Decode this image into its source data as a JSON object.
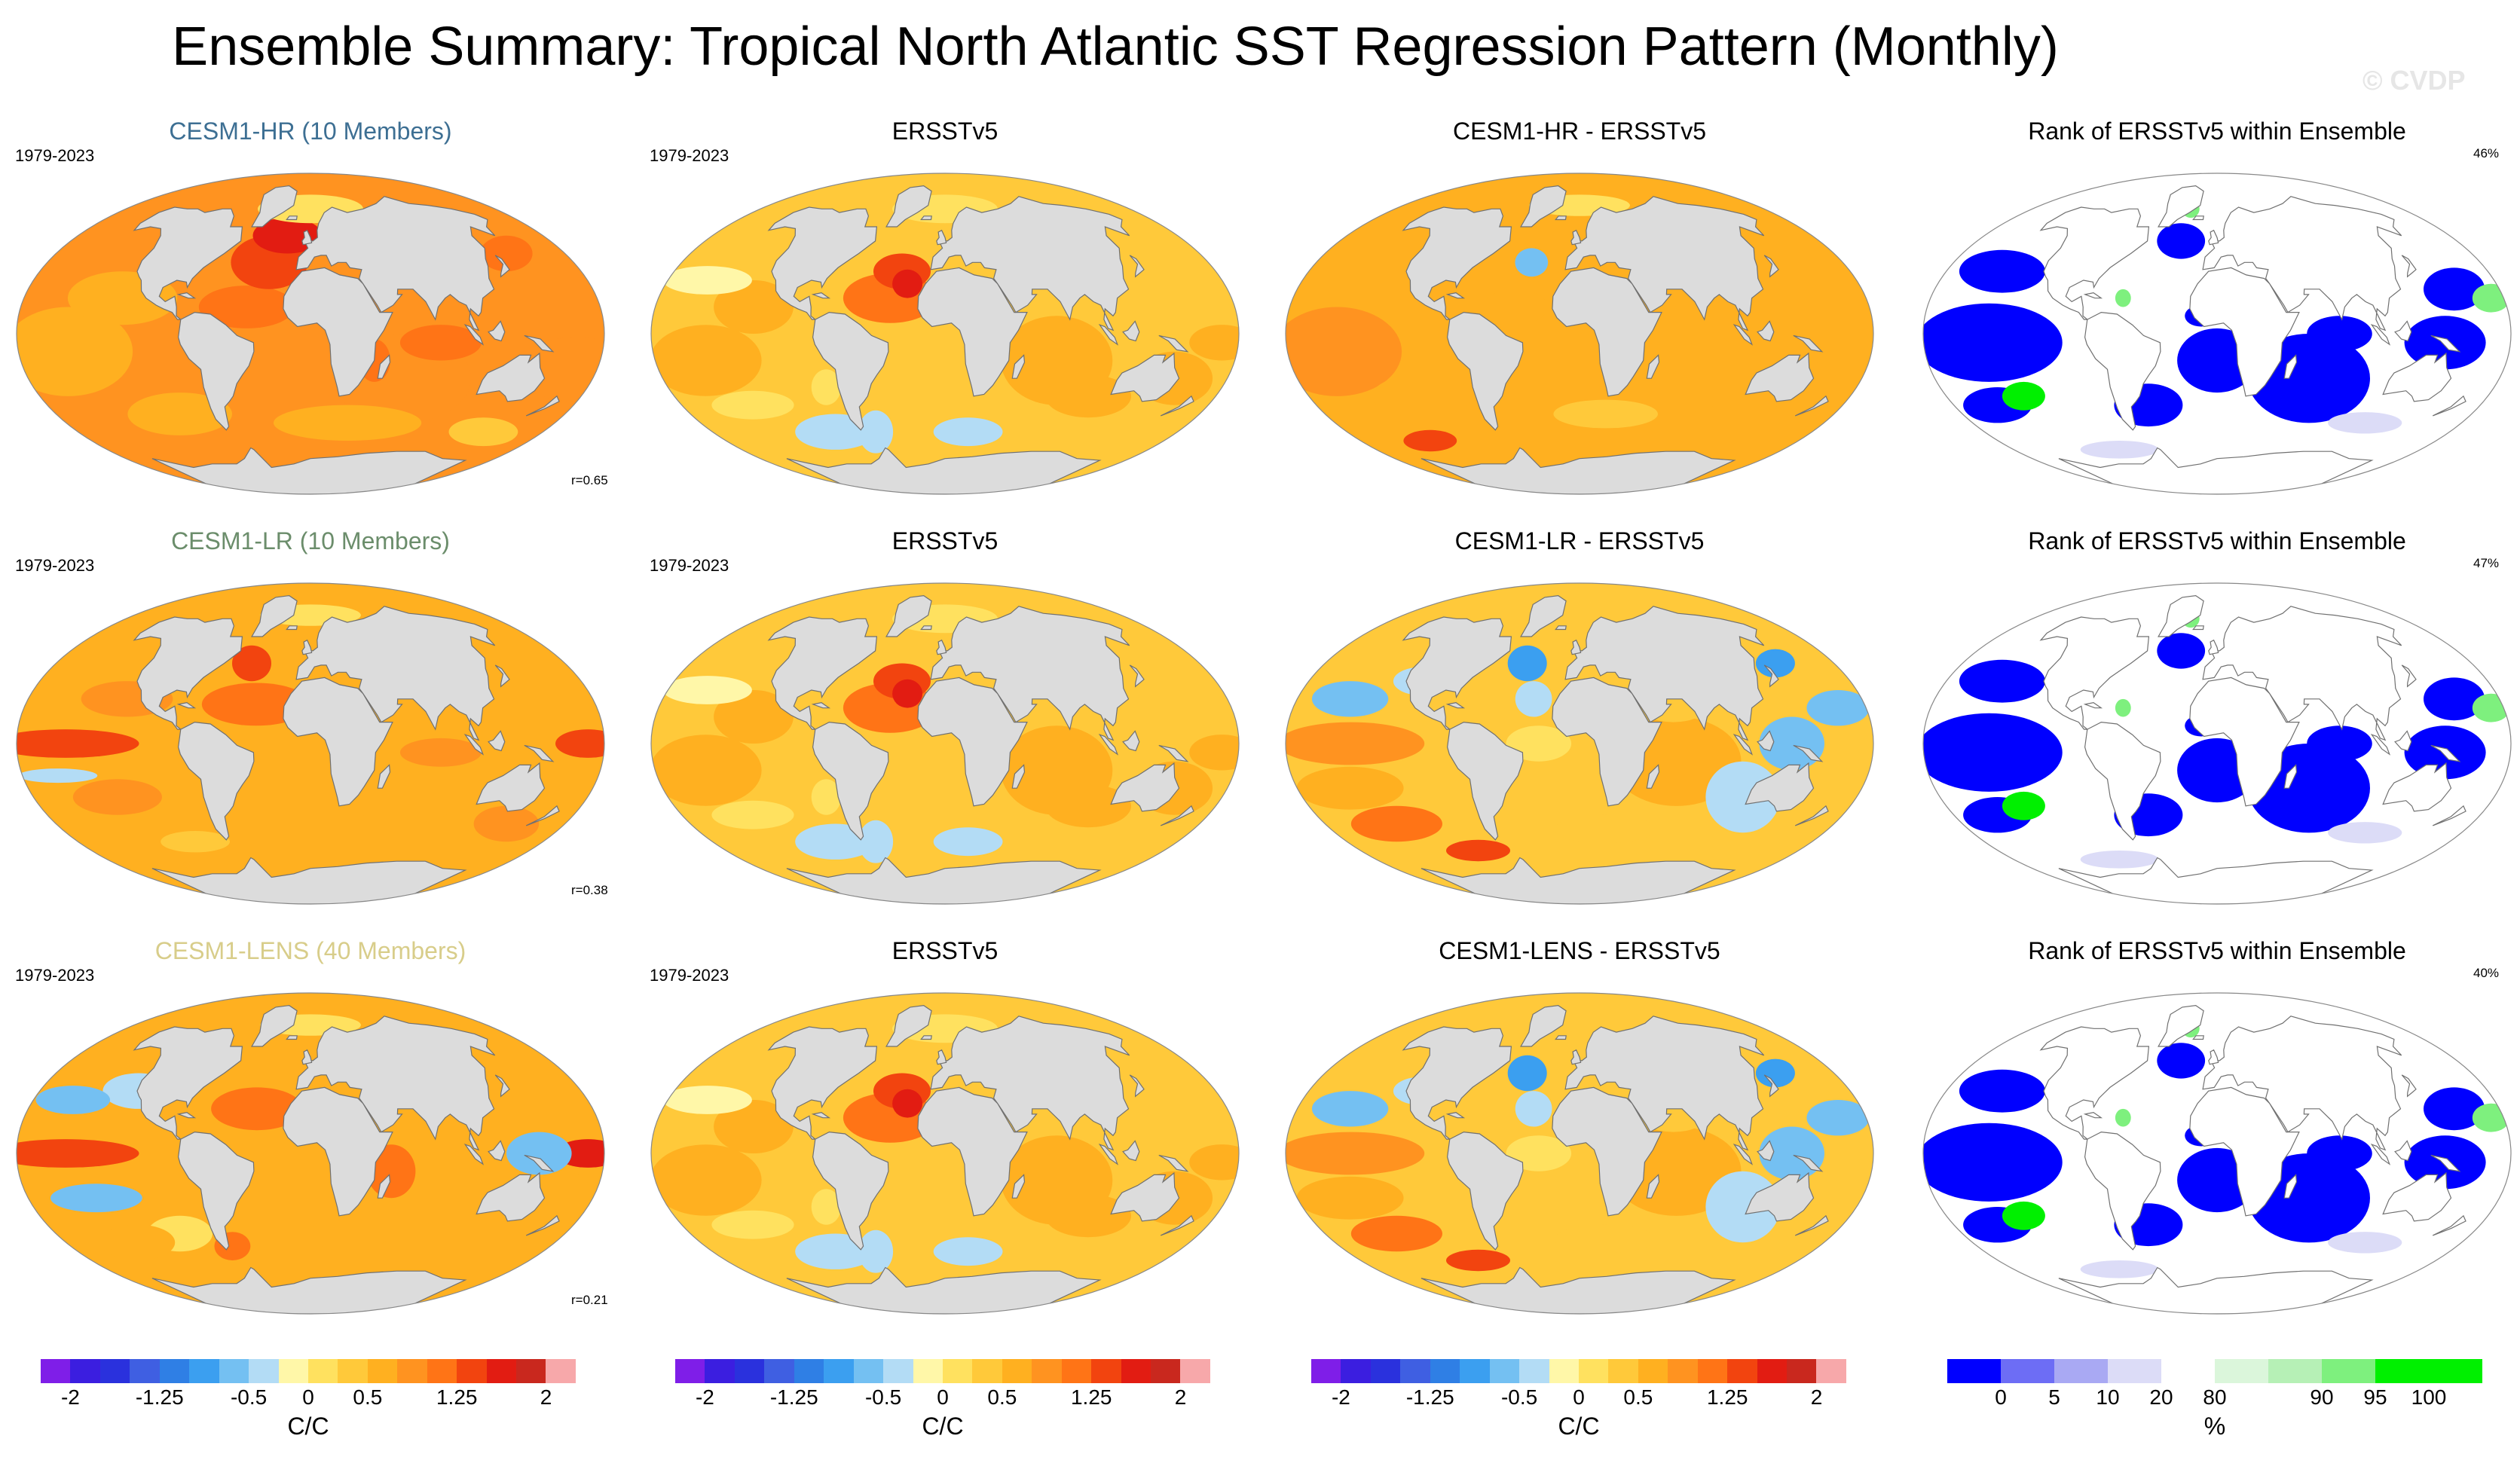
{
  "title": "Ensemble Summary: Tropical North Atlantic SST Regression Pattern (Monthly)",
  "watermark": "© CVDP",
  "colors": {
    "diverging_scale": [
      "#7f1ee8",
      "#3b1ee0",
      "#2a31dd",
      "#3f5fe2",
      "#2f7fe5",
      "#3b9ff0",
      "#74c0f2",
      "#b3dcf5",
      "#fff7a8",
      "#ffe15f",
      "#ffc93a",
      "#ffb020",
      "#ff9320",
      "#ff7416",
      "#f2440f",
      "#e21c12",
      "#c9281e",
      "#f7a8aa"
    ],
    "rank_scale": [
      "#0000ff",
      "#6d6df5",
      "#a9a9f3",
      "#dcdcf7",
      "#ffffff",
      "#dbf6db",
      "#b6f0b6",
      "#7ef07e",
      "#00f000"
    ],
    "land": "#dcdcdc",
    "coast": "#707070",
    "title_hr": "#3d6f93",
    "title_lr": "#6b8d6b",
    "title_lens": "#d8cd8a"
  },
  "chart_data": [
    {
      "id": "hr_ens",
      "type": "heatmap",
      "title": "CESM1-HR (10 Members)",
      "period": "1979-2023",
      "pattern_correlation": "r=0.65",
      "map_theme": "model_warm"
    },
    {
      "id": "hr_obs",
      "type": "heatmap",
      "title": "ERSSTv5",
      "period": "1979-2023",
      "map_theme": "obs"
    },
    {
      "id": "hr_diff",
      "type": "heatmap",
      "title": "CESM1-HR - ERSSTv5",
      "map_theme": "diff_warm"
    },
    {
      "id": "hr_rank",
      "type": "heatmap",
      "title": "Rank of ERSSTv5 within Ensemble",
      "percent_label": "46%",
      "map_theme": "rank"
    },
    {
      "id": "lr_ens",
      "type": "heatmap",
      "title": "CESM1-LR (10 Members)",
      "period": "1979-2023",
      "pattern_correlation": "r=0.38",
      "map_theme": "model_mid"
    },
    {
      "id": "lr_obs",
      "type": "heatmap",
      "title": "ERSSTv5",
      "period": "1979-2023",
      "map_theme": "obs"
    },
    {
      "id": "lr_diff",
      "type": "heatmap",
      "title": "CESM1-LR - ERSSTv5",
      "map_theme": "diff_mixed"
    },
    {
      "id": "lr_rank",
      "type": "heatmap",
      "title": "Rank of ERSSTv5 within Ensemble",
      "percent_label": "47%",
      "map_theme": "rank"
    },
    {
      "id": "lens_ens",
      "type": "heatmap",
      "title": "CESM1-LENS (40 Members)",
      "period": "1979-2023",
      "pattern_correlation": "r=0.21",
      "map_theme": "model_cool"
    },
    {
      "id": "lens_obs",
      "type": "heatmap",
      "title": "ERSSTv5",
      "period": "1979-2023",
      "map_theme": "obs"
    },
    {
      "id": "lens_diff",
      "type": "heatmap",
      "title": "CESM1-LENS - ERSSTv5",
      "map_theme": "diff_mixed"
    },
    {
      "id": "lens_rank",
      "type": "heatmap",
      "title": "Rank of ERSSTv5 within Ensemble",
      "percent_label": "40%",
      "map_theme": "rank"
    }
  ],
  "colorbars": [
    {
      "id": "cb1",
      "ticks": [
        "-2",
        "-1.25",
        "-0.5",
        "0",
        "0.5",
        "1.25",
        "2"
      ],
      "tick_positions": [
        -2,
        -1.25,
        -0.5,
        0,
        0.5,
        1.25,
        2
      ],
      "min": -2.25,
      "max": 2.25,
      "unit": "C/C"
    },
    {
      "id": "cb2",
      "ticks": [
        "-2",
        "-1.25",
        "-0.5",
        "0",
        "0.5",
        "1.25",
        "2"
      ],
      "tick_positions": [
        -2,
        -1.25,
        -0.5,
        0,
        0.5,
        1.25,
        2
      ],
      "min": -2.25,
      "max": 2.25,
      "unit": "C/C"
    },
    {
      "id": "cb3",
      "ticks": [
        "-2",
        "-1.25",
        "-0.5",
        "0",
        "0.5",
        "1.25",
        "2"
      ],
      "tick_positions": [
        -2,
        -1.25,
        -0.5,
        0,
        0.5,
        1.25,
        2
      ],
      "min": -2.25,
      "max": 2.25,
      "unit": "C/C"
    },
    {
      "id": "cb4",
      "ticks": [
        "0",
        "5",
        "10",
        "20",
        "80",
        "90",
        "95",
        "100"
      ],
      "tick_index": [
        1,
        2,
        3,
        4,
        5,
        7,
        8,
        9
      ],
      "unit": "%"
    }
  ]
}
